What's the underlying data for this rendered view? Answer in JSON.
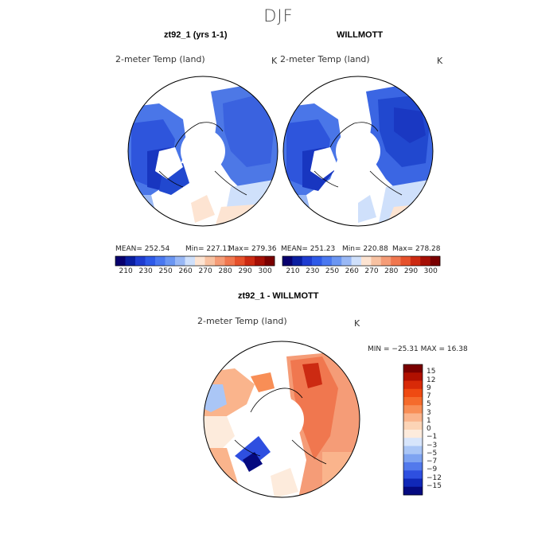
{
  "figure": {
    "season": "DJF"
  },
  "panels": [
    {
      "title": "zt92_1 (yrs 1-1)",
      "variable": "2-meter Temp (land)",
      "units": "K",
      "stats": {
        "mean": "MEAN= 252.54",
        "min": "Min= 227.11",
        "max": "Max= 279.36"
      }
    },
    {
      "title": "WILLMOTT",
      "variable": "2-meter Temp (land)",
      "units": "K",
      "stats": {
        "mean": "MEAN= 251.23",
        "min": "Min= 220.88",
        "max": "Max= 278.28"
      }
    },
    {
      "title": "zt92_1 - WILLMOTT",
      "variable": "2-meter Temp (land)",
      "units": "K",
      "minmax": "MIN = −25.31 MAX =  16.38"
    }
  ],
  "colorbars": {
    "absolute": {
      "labels": [
        "210",
        "230",
        "250",
        "260",
        "270",
        "280",
        "290",
        "300"
      ],
      "colors": [
        "#08006e",
        "#0a1ea0",
        "#1e3cd0",
        "#2e5ae8",
        "#4a78f0",
        "#6b96f2",
        "#99b8f5",
        "#cfe0fb",
        "#fde4d2",
        "#f8c2a2",
        "#f59c77",
        "#f0774f",
        "#e6512b",
        "#cc2a12",
        "#a50f05",
        "#7a0000"
      ]
    },
    "difference": {
      "labels": [
        "15",
        "12",
        "9",
        "7",
        "5",
        "3",
        "1",
        "0",
        "−1",
        "−3",
        "−5",
        "−7",
        "−9",
        "−12",
        "−15"
      ],
      "colors": [
        "#7a0000",
        "#b01000",
        "#d82a08",
        "#ef4a12",
        "#f56b2c",
        "#f88e56",
        "#fab48c",
        "#fcd4b6",
        "#fdebdc",
        "#d7e5fb",
        "#aac6f6",
        "#7ea3f1",
        "#5279ec",
        "#2e4fe0",
        "#1028b8",
        "#050a80"
      ]
    }
  }
}
